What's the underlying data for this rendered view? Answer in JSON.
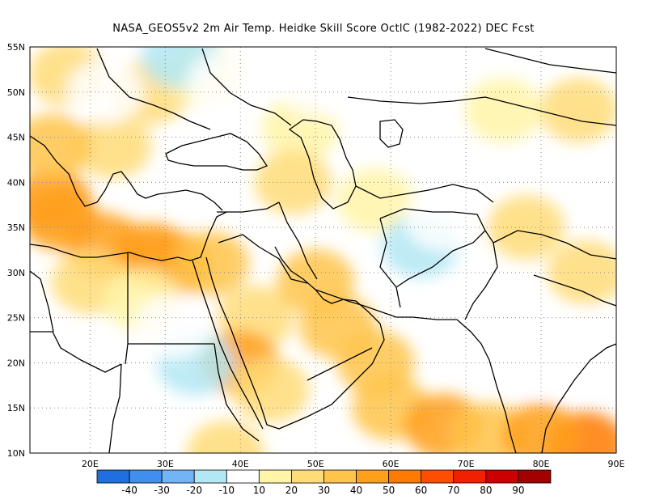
{
  "title": "NASA_GEOS5v2  2m Air Temp. Heidke Skill Score OctlC (1982-2022) DEC Fcst",
  "map": {
    "lon_range": [
      12,
      90
    ],
    "lat_range": [
      10,
      55
    ],
    "lon_ticks": [
      {
        "value": 20,
        "label": "20E"
      },
      {
        "value": 30,
        "label": "30E"
      },
      {
        "value": 40,
        "label": "40E"
      },
      {
        "value": 50,
        "label": "50E"
      },
      {
        "value": 60,
        "label": "60E"
      },
      {
        "value": 70,
        "label": "70E"
      },
      {
        "value": 80,
        "label": "80E"
      },
      {
        "value": 90,
        "label": "90E"
      }
    ],
    "lat_ticks": [
      {
        "value": 10,
        "label": "10N"
      },
      {
        "value": 15,
        "label": "15N"
      },
      {
        "value": 20,
        "label": "20N"
      },
      {
        "value": 25,
        "label": "25N"
      },
      {
        "value": 30,
        "label": "30N"
      },
      {
        "value": 35,
        "label": "35N"
      },
      {
        "value": 40,
        "label": "40N"
      },
      {
        "value": 45,
        "label": "45N"
      },
      {
        "value": 50,
        "label": "50N"
      },
      {
        "value": 55,
        "label": "55N"
      }
    ],
    "grid": "dotted"
  },
  "colorbar": {
    "colors": [
      "#1f6fe0",
      "#3f8ef0",
      "#72b4f5",
      "#b2e8f4",
      "#ffffff",
      "#fff5a8",
      "#ffdc78",
      "#ffc44a",
      "#ff9f1a",
      "#ff7a00",
      "#ff4e00",
      "#f02000",
      "#cc0000",
      "#a30000"
    ],
    "labels": [
      "-40",
      "-30",
      "-20",
      "-10",
      "10",
      "20",
      "30",
      "40",
      "50",
      "60",
      "70",
      "80",
      "90"
    ]
  },
  "field": [
    {
      "lon": 16,
      "lat": 36,
      "score": 45
    },
    {
      "lon": 15,
      "lat": 38,
      "score": 40
    },
    {
      "lon": 22,
      "lat": 33,
      "score": 40
    },
    {
      "lon": 28,
      "lat": 32,
      "score": 45
    },
    {
      "lon": 31,
      "lat": 31,
      "score": 40
    },
    {
      "lon": 36,
      "lat": 31,
      "score": 30
    },
    {
      "lon": 20,
      "lat": 29,
      "score": 20
    },
    {
      "lon": 27,
      "lat": 27,
      "score": 15
    },
    {
      "lon": 42,
      "lat": 25,
      "score": 25
    },
    {
      "lon": 40,
      "lat": 20,
      "score": 40
    },
    {
      "lon": 44,
      "lat": 17,
      "score": 25
    },
    {
      "lon": 50,
      "lat": 29,
      "score": 35
    },
    {
      "lon": 53,
      "lat": 24,
      "score": 30
    },
    {
      "lon": 58,
      "lat": 20,
      "score": 30
    },
    {
      "lon": 60,
      "lat": 15,
      "score": 35
    },
    {
      "lon": 67,
      "lat": 13,
      "score": 40
    },
    {
      "lon": 73,
      "lat": 12,
      "score": 35
    },
    {
      "lon": 86,
      "lat": 11,
      "score": 55
    },
    {
      "lon": 80,
      "lat": 12,
      "score": 40
    },
    {
      "lon": 86,
      "lat": 30,
      "score": 25
    },
    {
      "lon": 78,
      "lat": 35,
      "score": 25
    },
    {
      "lon": 85,
      "lat": 48,
      "score": 20
    },
    {
      "lon": 75,
      "lat": 48,
      "score": 15
    },
    {
      "lon": 28,
      "lat": 50,
      "score": 20
    },
    {
      "lon": 35,
      "lat": 52,
      "score": 15
    },
    {
      "lon": 48,
      "lat": 46,
      "score": 15
    },
    {
      "lon": 47,
      "lat": 40,
      "score": 20
    },
    {
      "lon": 58,
      "lat": 38,
      "score": 15
    },
    {
      "lon": 23,
      "lat": 44,
      "score": 20
    },
    {
      "lon": 15,
      "lat": 44,
      "score": 35
    },
    {
      "lon": 17,
      "lat": 52,
      "score": 20
    },
    {
      "lon": 38,
      "lat": 10,
      "score": 20
    },
    {
      "lon": 32,
      "lat": 54,
      "score": -20
    },
    {
      "lon": 38,
      "lat": 51,
      "score": -10
    },
    {
      "lon": 55,
      "lat": 50,
      "score": -10
    },
    {
      "lon": 62,
      "lat": 47,
      "score": -10
    },
    {
      "lon": 64,
      "lat": 33,
      "score": -20
    },
    {
      "lon": 67,
      "lat": 36,
      "score": -10
    },
    {
      "lon": 34,
      "lat": 20,
      "score": -20
    },
    {
      "lon": 31,
      "lat": 24,
      "score": -10
    },
    {
      "lon": 82,
      "lat": 20,
      "score": -10
    },
    {
      "lon": 87,
      "lat": 22,
      "score": -10
    },
    {
      "lon": 22,
      "lat": 50,
      "score": -10
    },
    {
      "lon": 50,
      "lat": 51,
      "score": -10
    }
  ]
}
